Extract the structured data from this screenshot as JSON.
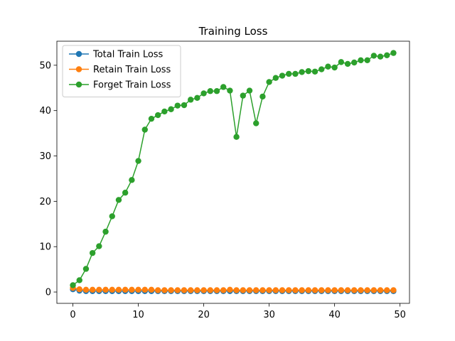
{
  "chart_data": {
    "type": "line",
    "title": "Training Loss",
    "xlabel": "",
    "ylabel": "",
    "xlim": [
      -2.45,
      51.45
    ],
    "ylim": [
      -2.5,
      55.3
    ],
    "xticks": [
      0,
      10,
      20,
      30,
      40,
      50
    ],
    "yticks": [
      0,
      10,
      20,
      30,
      40,
      50
    ],
    "grid": false,
    "legend": "top-left",
    "x": [
      0,
      1,
      2,
      3,
      4,
      5,
      6,
      7,
      8,
      9,
      10,
      11,
      12,
      13,
      14,
      15,
      16,
      17,
      18,
      19,
      20,
      21,
      22,
      23,
      24,
      25,
      26,
      27,
      28,
      29,
      30,
      31,
      32,
      33,
      34,
      35,
      36,
      37,
      38,
      39,
      40,
      41,
      42,
      43,
      44,
      45,
      46,
      47,
      48,
      49
    ],
    "series": [
      {
        "name": "Total Train Loss",
        "color": "#1f77b4",
        "values": [
          0.6,
          0.3,
          0.2,
          0.2,
          0.2,
          0.2,
          0.2,
          0.2,
          0.2,
          0.2,
          0.2,
          0.2,
          0.2,
          0.2,
          0.2,
          0.2,
          0.2,
          0.2,
          0.2,
          0.2,
          0.2,
          0.2,
          0.2,
          0.2,
          0.2,
          0.2,
          0.2,
          0.2,
          0.2,
          0.2,
          0.2,
          0.2,
          0.2,
          0.2,
          0.2,
          0.2,
          0.2,
          0.2,
          0.2,
          0.2,
          0.2,
          0.2,
          0.2,
          0.2,
          0.2,
          0.2,
          0.2,
          0.2,
          0.2,
          0.2
        ]
      },
      {
        "name": "Retain Train Loss",
        "color": "#ff7f0e",
        "values": [
          0.9,
          0.6,
          0.5,
          0.5,
          0.5,
          0.5,
          0.5,
          0.5,
          0.5,
          0.5,
          0.5,
          0.5,
          0.5,
          0.4,
          0.4,
          0.4,
          0.4,
          0.4,
          0.4,
          0.4,
          0.4,
          0.4,
          0.4,
          0.4,
          0.5,
          0.4,
          0.4,
          0.4,
          0.4,
          0.4,
          0.4,
          0.4,
          0.4,
          0.4,
          0.4,
          0.4,
          0.4,
          0.4,
          0.4,
          0.4,
          0.4,
          0.4,
          0.4,
          0.4,
          0.4,
          0.4,
          0.4,
          0.4,
          0.4,
          0.4
        ]
      },
      {
        "name": "Forget Train Loss",
        "color": "#2ca02c",
        "values": [
          1.5,
          2.6,
          5.1,
          8.6,
          10.1,
          13.3,
          16.7,
          20.3,
          21.9,
          24.7,
          28.9,
          35.8,
          38.2,
          39.0,
          39.8,
          40.3,
          41.1,
          41.2,
          42.4,
          42.8,
          43.8,
          44.3,
          44.3,
          45.2,
          44.4,
          34.2,
          43.3,
          44.4,
          37.2,
          43.1,
          46.3,
          47.2,
          47.7,
          48.1,
          48.1,
          48.5,
          48.7,
          48.6,
          49.1,
          49.7,
          49.5,
          50.7,
          50.3,
          50.6,
          51.1,
          51.1,
          52.1,
          51.9,
          52.2,
          52.7
        ]
      }
    ]
  }
}
